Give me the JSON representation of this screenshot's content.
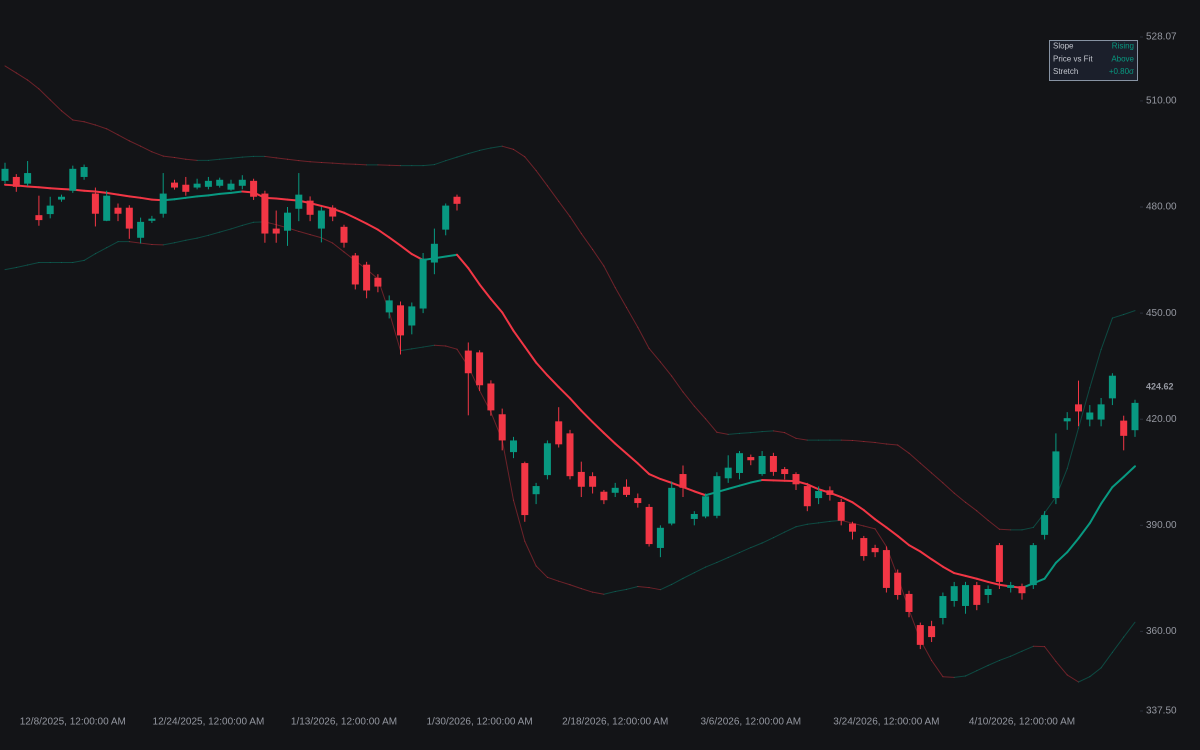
{
  "chart_data": {
    "type": "candlestick",
    "categories": [
      null,
      null,
      null,
      null,
      null,
      null,
      "12/8/2025, 12:00:00 AM",
      null,
      null,
      null,
      null,
      null,
      null,
      null,
      null,
      null,
      null,
      null,
      "12/24/2025, 12:00:00 AM",
      null,
      null,
      null,
      null,
      null,
      null,
      null,
      null,
      null,
      null,
      null,
      "1/13/2026, 12:00:00 AM",
      null,
      null,
      null,
      null,
      null,
      null,
      null,
      null,
      null,
      null,
      null,
      "1/30/2026, 12:00:00 AM",
      null,
      null,
      null,
      null,
      null,
      null,
      null,
      null,
      null,
      null,
      null,
      "2/18/2026, 12:00:00 AM",
      null,
      null,
      null,
      null,
      null,
      null,
      null,
      null,
      null,
      null,
      null,
      "3/6/2026, 12:00:00 AM",
      null,
      null,
      null,
      null,
      null,
      null,
      null,
      null,
      null,
      null,
      null,
      "3/24/2026, 12:00:00 AM",
      null,
      null,
      null,
      null,
      null,
      null,
      null,
      null,
      null,
      null,
      null,
      "4/10/2026, 12:00:00 AM",
      null,
      null,
      null,
      null,
      null,
      null,
      null,
      null,
      null,
      null
    ],
    "open": [
      487.4,
      488.5,
      486.6,
      477.7,
      478.0,
      482.1,
      484.6,
      488.5,
      483.8,
      476.1,
      479.8,
      479.8,
      471.3,
      476.1,
      478.1,
      486.9,
      486.3,
      485.5,
      485.7,
      486.0,
      484.9,
      486.0,
      487.4,
      483.8,
      473.9,
      473.3,
      479.5,
      481.8,
      473.9,
      479.8,
      474.4,
      466.3,
      463.7,
      460.0,
      450.2,
      452.2,
      446.5,
      451.3,
      464.3,
      473.6,
      482.9,
      439.4,
      438.9,
      430.1,
      421.4,
      410.7,
      407.6,
      398.8,
      404.2,
      419.4,
      416.0,
      405.1,
      403.9,
      399.5,
      399.2,
      400.9,
      397.7,
      395.2,
      383.6,
      390.5,
      404.5,
      391.8,
      392.5,
      392.7,
      403.3,
      404.8,
      409.3,
      404.5,
      409.6,
      405.9,
      404.5,
      401.1,
      397.7,
      399.9,
      396.6,
      390.5,
      386.4,
      383.6,
      383.0,
      376.6,
      370.6,
      361.8,
      361.5,
      363.8,
      368.6,
      367.2,
      373.1,
      370.3,
      384.4,
      372.3,
      372.8,
      373.1,
      387.3,
      397.7,
      419.4,
      424.2,
      419.9,
      419.9,
      425.9,
      419.6,
      416.9
    ],
    "high": [
      492.5,
      489.3,
      493.0,
      483.2,
      482.9,
      483.5,
      491.7,
      492.0,
      485.5,
      484.6,
      481.0,
      480.5,
      477.0,
      477.5,
      489.6,
      487.7,
      488.5,
      488.0,
      488.5,
      488.3,
      487.7,
      489.0,
      488.0,
      484.6,
      479.0,
      480.0,
      489.6,
      483.0,
      480.0,
      480.5,
      475.0,
      467.0,
      464.5,
      461.0,
      455.0,
      453.3,
      453.0,
      467.0,
      473.9,
      481.0,
      483.5,
      441.7,
      439.5,
      431.0,
      423.0,
      415.0,
      408.0,
      402.0,
      414.0,
      423.4,
      417.0,
      408.0,
      405.0,
      400.0,
      402.0,
      403.0,
      399.0,
      396.0,
      390.0,
      402.4,
      406.9,
      394.0,
      399.0,
      405.0,
      409.8,
      411.0,
      410.0,
      411.0,
      410.5,
      406.5,
      405.0,
      402.0,
      401.0,
      401.0,
      397.5,
      391.0,
      387.0,
      384.5,
      384.0,
      377.5,
      371.5,
      362.5,
      363.0,
      371.0,
      374.0,
      374.0,
      374.0,
      373.0,
      385.0,
      374.0,
      373.5,
      385.0,
      394.0,
      416.0,
      422.0,
      430.9,
      424.0,
      426.0,
      433.0,
      421.0,
      425.5
    ],
    "low": [
      486.6,
      484.3,
      485.9,
      474.7,
      476.8,
      481.5,
      484.0,
      487.7,
      474.5,
      476.0,
      476.0,
      471.0,
      469.7,
      475.5,
      477.0,
      484.9,
      483.2,
      485.0,
      485.0,
      485.5,
      484.6,
      485.0,
      482.0,
      469.9,
      469.9,
      469.0,
      476.0,
      476.0,
      470.0,
      476.0,
      468.5,
      456.7,
      454.2,
      455.9,
      448.5,
      438.3,
      444.0,
      450.0,
      461.0,
      472.0,
      479.0,
      421.1,
      428.0,
      421.0,
      411.2,
      409.0,
      391.0,
      396.0,
      403.0,
      412.0,
      403.0,
      398.0,
      399.0,
      396.0,
      398.0,
      398.0,
      395.0,
      384.0,
      381.0,
      390.0,
      398.0,
      390.0,
      392.0,
      392.0,
      402.0,
      403.0,
      407.0,
      404.0,
      404.0,
      403.0,
      400.0,
      394.0,
      396.0,
      397.0,
      390.0,
      386.0,
      380.0,
      381.0,
      371.0,
      369.0,
      364.0,
      355.0,
      357.0,
      362.0,
      367.0,
      365.0,
      366.0,
      368.0,
      372.0,
      371.0,
      369.0,
      372.0,
      386.0,
      396.0,
      417.0,
      418.0,
      418.0,
      418.0,
      424.0,
      411.2,
      415.0
    ],
    "close": [
      490.8,
      485.7,
      489.6,
      476.3,
      480.4,
      482.9,
      490.8,
      491.3,
      478.1,
      483.2,
      478.1,
      473.9,
      475.8,
      476.7,
      483.8,
      485.5,
      484.3,
      486.6,
      487.4,
      487.7,
      486.6,
      487.7,
      482.9,
      472.5,
      472.5,
      478.4,
      483.5,
      477.8,
      479.0,
      477.3,
      469.9,
      458.1,
      456.4,
      457.5,
      453.6,
      443.7,
      451.9,
      465.4,
      469.6,
      480.4,
      480.9,
      433.0,
      429.6,
      422.5,
      414.0,
      414.0,
      392.9,
      401.1,
      413.2,
      412.9,
      403.9,
      400.9,
      400.9,
      397.1,
      400.6,
      398.6,
      396.3,
      384.7,
      389.3,
      400.6,
      400.6,
      393.2,
      398.2,
      403.9,
      406.3,
      410.4,
      408.4,
      409.6,
      405.1,
      404.5,
      401.6,
      395.4,
      399.7,
      398.6,
      391.3,
      388.2,
      381.3,
      382.4,
      372.3,
      370.3,
      365.5,
      356.2,
      358.4,
      370.0,
      372.8,
      373.1,
      367.5,
      372.0,
      374.0,
      373.1,
      370.8,
      384.4,
      392.9,
      410.9,
      420.3,
      422.2,
      421.9,
      424.2,
      432.3,
      415.3,
      424.62
    ],
    "fit": [
      486.3,
      486.1,
      485.8,
      485.6,
      485.3,
      485.1,
      484.9,
      484.6,
      484.4,
      484.0,
      483.5,
      483.0,
      482.6,
      482.1,
      481.9,
      482.2,
      482.6,
      483.0,
      483.3,
      483.7,
      484.0,
      484.4,
      484.1,
      482.6,
      482.4,
      482.1,
      481.8,
      481.1,
      480.3,
      479.5,
      478.4,
      476.9,
      475.3,
      473.6,
      471.4,
      469.1,
      466.7,
      465.0,
      465.5,
      466.0,
      466.5,
      462.7,
      458.1,
      454.0,
      450.2,
      445.0,
      440.5,
      436.0,
      432.4,
      429.1,
      425.9,
      422.4,
      419.2,
      416.1,
      413.1,
      410.3,
      407.5,
      404.5,
      403.1,
      402.0,
      400.8,
      399.6,
      398.5,
      399.4,
      400.3,
      401.2,
      402.1,
      402.8,
      402.7,
      402.6,
      402.5,
      401.6,
      400.2,
      399.2,
      398.0,
      396.5,
      394.3,
      391.7,
      389.4,
      387.0,
      384.4,
      382.6,
      380.4,
      378.3,
      376.5,
      375.7,
      374.9,
      374.0,
      373.2,
      372.7,
      372.3,
      373.6,
      374.9,
      379.4,
      382.4,
      386.3,
      390.6,
      396.1,
      400.8,
      403.7,
      406.7
    ],
    "upper_band": [
      519.9,
      517.9,
      515.9,
      513.4,
      510.3,
      507.2,
      504.6,
      504.1,
      503.2,
      502.1,
      500.4,
      498.7,
      497.2,
      495.6,
      494.4,
      494.0,
      493.5,
      493.2,
      493.2,
      493.5,
      493.8,
      494.1,
      494.3,
      494.3,
      493.9,
      493.5,
      493.1,
      492.8,
      492.6,
      492.4,
      492.2,
      492.1,
      491.9,
      491.9,
      491.8,
      491.7,
      491.7,
      491.7,
      492.0,
      493.1,
      494.1,
      495.1,
      496.0,
      496.7,
      497.2,
      496.3,
      494.2,
      490.3,
      486.0,
      481.6,
      477.3,
      472.5,
      468.0,
      463.3,
      457.2,
      451.6,
      446.0,
      440.0,
      436.2,
      432.2,
      427.7,
      423.7,
      420.1,
      416.3,
      415.7,
      416.0,
      416.2,
      416.5,
      416.7,
      416.2,
      414.6,
      414.1,
      414.1,
      414.1,
      414.1,
      414.0,
      413.7,
      413.4,
      413.0,
      412.7,
      410.4,
      407.6,
      404.8,
      402.0,
      399.1,
      396.5,
      394.1,
      391.4,
      388.9,
      388.7,
      388.7,
      389.4,
      393.5,
      398.0,
      406.0,
      417.5,
      428.9,
      439.7,
      448.6,
      449.6,
      450.7
    ],
    "lower_band": [
      462.3,
      462.9,
      463.6,
      464.3,
      464.3,
      464.3,
      464.3,
      464.9,
      466.8,
      468.5,
      470.2,
      470.2,
      469.8,
      469.4,
      469.3,
      469.9,
      470.6,
      471.2,
      472.0,
      472.9,
      473.8,
      474.8,
      475.7,
      475.8,
      475.0,
      474.1,
      473.1,
      472.2,
      471.3,
      469.8,
      467.3,
      464.8,
      462.4,
      459.7,
      450.3,
      439.4,
      439.9,
      440.4,
      440.9,
      440.7,
      439.8,
      434.9,
      428.1,
      422.0,
      414.1,
      397.1,
      385.5,
      378.5,
      375.3,
      374.2,
      373.2,
      372.1,
      371.1,
      370.5,
      371.3,
      371.9,
      372.7,
      372.4,
      371.8,
      373.3,
      375.0,
      376.6,
      378.2,
      379.5,
      380.9,
      382.3,
      383.7,
      385.0,
      386.5,
      388.1,
      389.6,
      390.3,
      390.7,
      391.1,
      391.4,
      390.6,
      389.8,
      389.0,
      384.0,
      375.5,
      366.1,
      357.6,
      351.8,
      347.2,
      347.0,
      347.4,
      348.9,
      350.4,
      351.8,
      353.0,
      354.4,
      355.8,
      355.7,
      351.5,
      347.7,
      345.7,
      347.2,
      349.7,
      354.1,
      358.4,
      362.6
    ],
    "up_color": "#089981",
    "down_color": "#f23645",
    "ylim": [
      337.5,
      528.07
    ],
    "yticks": [
      {
        "value": 337.5,
        "label": "337.50"
      },
      {
        "value": 360,
        "label": "360.00"
      },
      {
        "value": 390,
        "label": "390.00"
      },
      {
        "value": 420,
        "label": "420.00"
      },
      {
        "value": 450,
        "label": "450.00"
      },
      {
        "value": 480,
        "label": "480.00"
      },
      {
        "value": 510,
        "label": "510.00"
      },
      {
        "value": 528.07,
        "label": "528.07"
      }
    ],
    "stats": [
      {
        "label": "Slope",
        "value": "Rising"
      },
      {
        "label": "Price vs Fit",
        "value": "Above"
      },
      {
        "label": "Stretch",
        "value": "+0.80σ"
      }
    ]
  }
}
